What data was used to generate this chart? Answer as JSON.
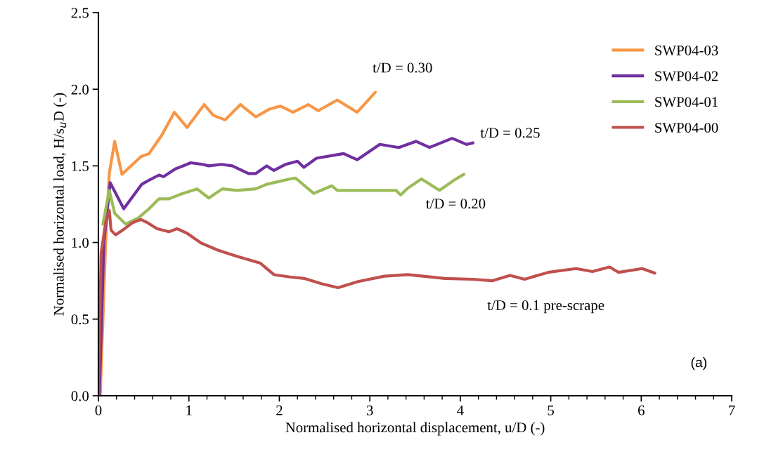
{
  "chart_data": {
    "type": "line",
    "xlabel": "Normalised horizontal displacement, u/D (-)",
    "ylabel": "Normalised horizontal load, H/s$_{u}$D (-)",
    "xlim": [
      0,
      7
    ],
    "ylim": [
      0,
      2.5
    ],
    "xticks": [
      0,
      1,
      2,
      3,
      4,
      5,
      6,
      7
    ],
    "yticks": [
      {
        "value": 0,
        "label": "0.0"
      },
      {
        "value": 0.5,
        "label": "0.5"
      },
      {
        "value": 1,
        "label": "1.0"
      },
      {
        "value": 1.5,
        "label": "1.5"
      },
      {
        "value": 2,
        "label": "2.0"
      },
      {
        "value": 2.5,
        "label": "2.5"
      }
    ],
    "legend": "top right",
    "grid": false,
    "marker": "none",
    "line_style": "solid",
    "annotations": [
      "t/D = 0.30",
      "t/D = 0.25",
      "t/D = 0.20",
      "t/D = 0.1 pre-scrape",
      "(a)"
    ],
    "series": [
      {
        "name": "SWP04-03",
        "color": "#f79646",
        "x": [
          0.02,
          0.08,
          0.12,
          0.18,
          0.26,
          0.47,
          0.56,
          0.7,
          0.84,
          0.98,
          1.17,
          1.27,
          1.4,
          1.57,
          1.74,
          1.89,
          2.01,
          2.15,
          2.32,
          2.43,
          2.64,
          2.86,
          3.06
        ],
        "values": [
          0,
          1.0,
          1.45,
          1.66,
          1.445,
          1.56,
          1.58,
          1.7,
          1.85,
          1.75,
          1.9,
          1.83,
          1.8,
          1.9,
          1.82,
          1.87,
          1.89,
          1.85,
          1.9,
          1.86,
          1.93,
          1.85,
          1.98
        ]
      },
      {
        "name": "SWP04-02",
        "color": "#7030a0",
        "x": [
          0.01,
          0.06,
          0.13,
          0.28,
          0.48,
          0.57,
          0.67,
          0.72,
          0.85,
          1.02,
          1.15,
          1.22,
          1.36,
          1.48,
          1.66,
          1.74,
          1.86,
          1.94,
          2.07,
          2.2,
          2.27,
          2.41,
          2.71,
          2.86,
          3.11,
          3.32,
          3.51,
          3.66,
          3.91,
          4.07,
          4.14
        ],
        "values": [
          0,
          1.0,
          1.39,
          1.22,
          1.38,
          1.41,
          1.44,
          1.43,
          1.48,
          1.52,
          1.51,
          1.5,
          1.51,
          1.5,
          1.45,
          1.45,
          1.5,
          1.47,
          1.51,
          1.53,
          1.49,
          1.55,
          1.58,
          1.54,
          1.64,
          1.62,
          1.66,
          1.62,
          1.68,
          1.64,
          1.65
        ]
      },
      {
        "name": "SWP04-01",
        "color": "#9bbb59",
        "x": [
          0.05,
          0.12,
          0.18,
          0.3,
          0.44,
          0.56,
          0.67,
          0.78,
          0.91,
          1.09,
          1.22,
          1.37,
          1.53,
          1.74,
          1.86,
          2.12,
          2.18,
          2.38,
          2.58,
          2.64,
          2.87,
          3.29,
          3.34,
          3.41,
          3.57,
          3.77,
          3.94,
          4.04
        ],
        "values": [
          1.12,
          1.34,
          1.19,
          1.12,
          1.16,
          1.22,
          1.285,
          1.285,
          1.315,
          1.35,
          1.29,
          1.35,
          1.34,
          1.35,
          1.38,
          1.415,
          1.42,
          1.32,
          1.37,
          1.34,
          1.34,
          1.34,
          1.31,
          1.35,
          1.415,
          1.34,
          1.41,
          1.445
        ]
      },
      {
        "name": "SWP04-00",
        "color": "#c0504d",
        "x": [
          0.0,
          0.03,
          0.08,
          0.12,
          0.14,
          0.19,
          0.29,
          0.38,
          0.47,
          0.54,
          0.65,
          0.78,
          0.87,
          0.98,
          1.14,
          1.32,
          1.53,
          1.79,
          1.94,
          2.12,
          2.28,
          2.47,
          2.65,
          2.87,
          3.16,
          3.42,
          3.83,
          4.14,
          4.35,
          4.55,
          4.71,
          4.97,
          5.28,
          5.46,
          5.65,
          5.75,
          6.01,
          6.15
        ],
        "values": [
          0,
          0.93,
          1.13,
          1.21,
          1.08,
          1.05,
          1.09,
          1.13,
          1.15,
          1.13,
          1.09,
          1.07,
          1.09,
          1.06,
          0.995,
          0.95,
          0.91,
          0.865,
          0.79,
          0.775,
          0.765,
          0.73,
          0.705,
          0.745,
          0.78,
          0.79,
          0.765,
          0.76,
          0.75,
          0.785,
          0.76,
          0.805,
          0.83,
          0.81,
          0.84,
          0.805,
          0.83,
          0.8
        ]
      }
    ]
  }
}
